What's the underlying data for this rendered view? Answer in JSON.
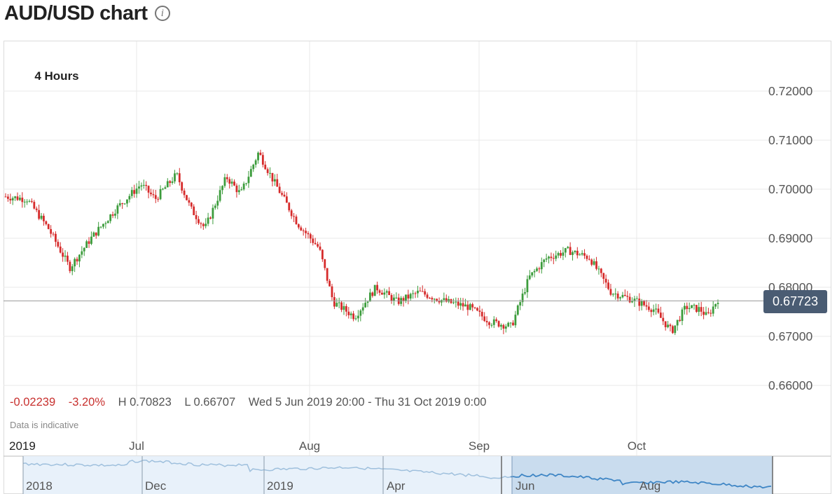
{
  "header": {
    "title": "AUD/USD chart",
    "info_icon": "info-icon"
  },
  "interval": "4 Hours",
  "current_price": "0.67723",
  "stats": {
    "change": "-0.02239",
    "change_pct": "-3.20%",
    "high": "H 0.70823",
    "low": "L 0.66707",
    "range": "Wed 5 Jun 2019 20:00 - Thu 31 Oct 2019 0:00"
  },
  "note": "Data is indicative",
  "colors": {
    "up": "#3c9c3c",
    "down": "#d62b2b",
    "grid": "#e8e8e8",
    "navigator_line": "#9fc0dd",
    "navigator_selected": "#3f86c5"
  },
  "chart_data": {
    "type": "candlestick",
    "ylim": [
      0.66,
      0.72
    ],
    "yticks": [
      "0.72000",
      "0.71000",
      "0.70000",
      "0.69000",
      "0.68000",
      "0.67000",
      "0.66000"
    ],
    "xticks": [
      "2019",
      "Jul",
      "Aug",
      "Sep",
      "Oct"
    ],
    "last_price": 0.67723,
    "price_path": [
      [
        0.0,
        0.6985
      ],
      [
        0.03,
        0.698
      ],
      [
        0.06,
        0.692
      ],
      [
        0.09,
        0.684
      ],
      [
        0.12,
        0.69
      ],
      [
        0.155,
        0.696
      ],
      [
        0.19,
        0.701
      ],
      [
        0.21,
        0.698
      ],
      [
        0.24,
        0.703
      ],
      [
        0.26,
        0.696
      ],
      [
        0.28,
        0.692
      ],
      [
        0.31,
        0.7025
      ],
      [
        0.33,
        0.699
      ],
      [
        0.355,
        0.7075
      ],
      [
        0.375,
        0.702
      ],
      [
        0.41,
        0.693
      ],
      [
        0.44,
        0.688
      ],
      [
        0.46,
        0.677
      ],
      [
        0.49,
        0.674
      ],
      [
        0.52,
        0.68
      ],
      [
        0.55,
        0.677
      ],
      [
        0.58,
        0.679
      ],
      [
        0.62,
        0.677
      ],
      [
        0.65,
        0.676
      ],
      [
        0.68,
        0.673
      ],
      [
        0.71,
        0.672
      ],
      [
        0.735,
        0.682
      ],
      [
        0.76,
        0.686
      ],
      [
        0.79,
        0.6875
      ],
      [
        0.82,
        0.686
      ],
      [
        0.85,
        0.679
      ],
      [
        0.88,
        0.6775
      ],
      [
        0.91,
        0.6755
      ],
      [
        0.935,
        0.671
      ],
      [
        0.955,
        0.676
      ],
      [
        0.975,
        0.6755
      ],
      [
        0.985,
        0.674
      ],
      [
        1.01,
        0.68
      ],
      [
        1.03,
        0.6772
      ]
    ],
    "navigator": {
      "labels": [
        "2018",
        "Dec",
        "2019",
        "Apr",
        "Jun",
        "Aug"
      ]
    }
  }
}
